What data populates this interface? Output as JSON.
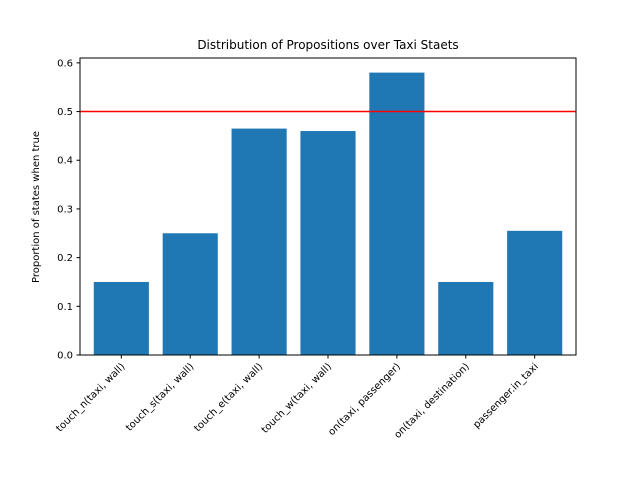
{
  "chart_data": {
    "type": "bar",
    "title": "Distribution of Propositions over Taxi Staets",
    "xlabel": "",
    "ylabel": "Proportion of states when true",
    "categories": [
      "touch_n(taxi, wall)",
      "touch_s(taxi, wall)",
      "touch_e(taxi, wall)",
      "touch_w(taxi, wall)",
      "on(taxi, passenger)",
      "on(taxi, destination)",
      "passenger.in_taxi"
    ],
    "values": [
      0.15,
      0.25,
      0.465,
      0.46,
      0.58,
      0.15,
      0.255
    ],
    "ylim": [
      0,
      0.61
    ],
    "yticks": [
      "0.0",
      "0.1",
      "0.2",
      "0.3",
      "0.4",
      "0.5",
      "0.6"
    ],
    "threshold": 0.5,
    "bar_color": "#1f77b4",
    "threshold_color": "#ff0000",
    "grid": false,
    "legend": "none"
  }
}
